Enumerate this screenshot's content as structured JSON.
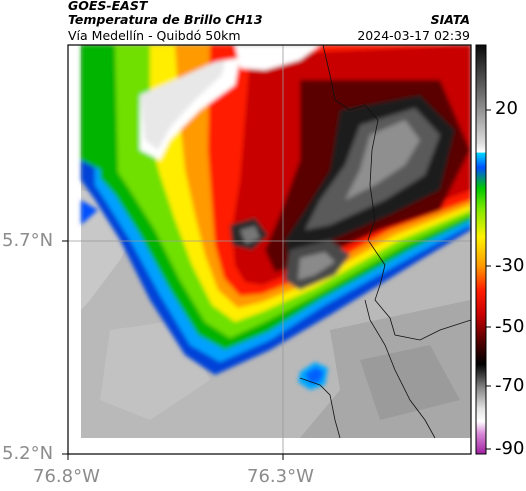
{
  "header": {
    "satellite": "GOES-EAST",
    "product": "Temperatura de Brillo CH13",
    "route": "Vía Medellín - Quibdó 50km",
    "agency": "SIATA",
    "timestamp": "2024-03-17 02:39"
  },
  "map": {
    "lat_labels": [
      "5.7°N",
      "5.2°N"
    ],
    "lon_labels": [
      "76.8°W",
      "76.3°W"
    ]
  },
  "colorbar": {
    "tick_labels": [
      "20",
      "-30",
      "-50",
      "-70",
      "-90"
    ]
  },
  "colors": {
    "warm_ground": "#b8b8b8",
    "cold_cloud": "#2a2a2a",
    "frame": "#000000",
    "grid": "#9a9a9a"
  }
}
